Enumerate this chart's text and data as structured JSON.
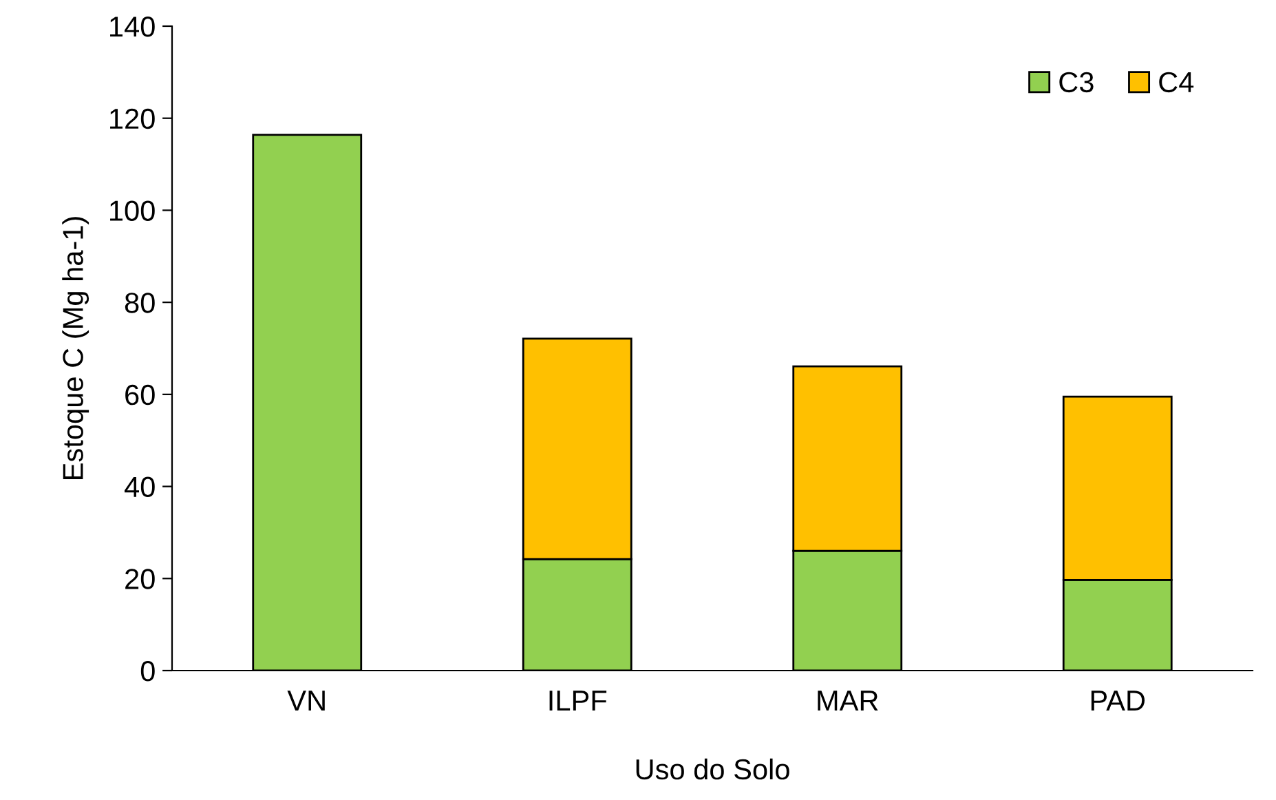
{
  "chart_data": {
    "type": "bar",
    "stacked": true,
    "xlabel": "Uso do Solo",
    "ylabel": "Estoque C (Mg ha-1)",
    "categories": [
      "VN",
      "ILPF",
      "MAR",
      "PAD"
    ],
    "series": [
      {
        "name": "C3",
        "color": "#92d050",
        "values": [
          116.4,
          24.2,
          26.0,
          19.7
        ]
      },
      {
        "name": "C4",
        "color": "#ffc000",
        "values": [
          null,
          47.9,
          40.1,
          39.8
        ]
      }
    ],
    "ylim": [
      0,
      140
    ],
    "yticks": [
      0,
      20,
      40,
      60,
      80,
      100,
      120,
      140
    ],
    "grid": false,
    "legend": "top right"
  }
}
